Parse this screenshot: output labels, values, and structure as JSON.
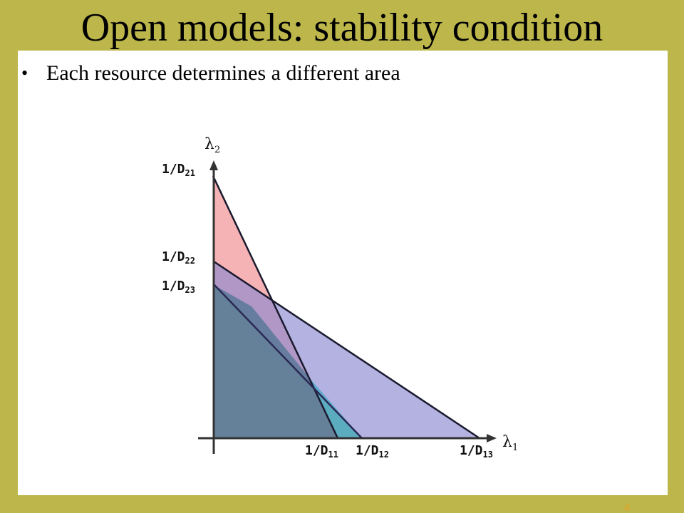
{
  "slide": {
    "title": "Open models: stability condition",
    "bullet": "Each resource determines a different area",
    "page_number": "4"
  },
  "diagram": {
    "x_axis": {
      "symbol": "λ",
      "subscript": "1"
    },
    "y_axis": {
      "symbol": "λ",
      "subscript": "2"
    },
    "x_ticks": [
      {
        "base": "1/D",
        "sub": "11"
      },
      {
        "base": "1/D",
        "sub": "12"
      },
      {
        "base": "1/D",
        "sub": "13"
      }
    ],
    "y_ticks": [
      {
        "base": "1/D",
        "sub": "21"
      },
      {
        "base": "1/D",
        "sub": "22"
      },
      {
        "base": "1/D",
        "sub": "23"
      }
    ],
    "regions": [
      {
        "resource": "1",
        "color": "#f08a8f"
      },
      {
        "resource": "2",
        "color": "#8a88d0"
      },
      {
        "resource": "3",
        "color": "#9ccc5a"
      }
    ],
    "overlap_color": "#5e7a9a",
    "side_overlap_color": "#4fa8c8"
  }
}
